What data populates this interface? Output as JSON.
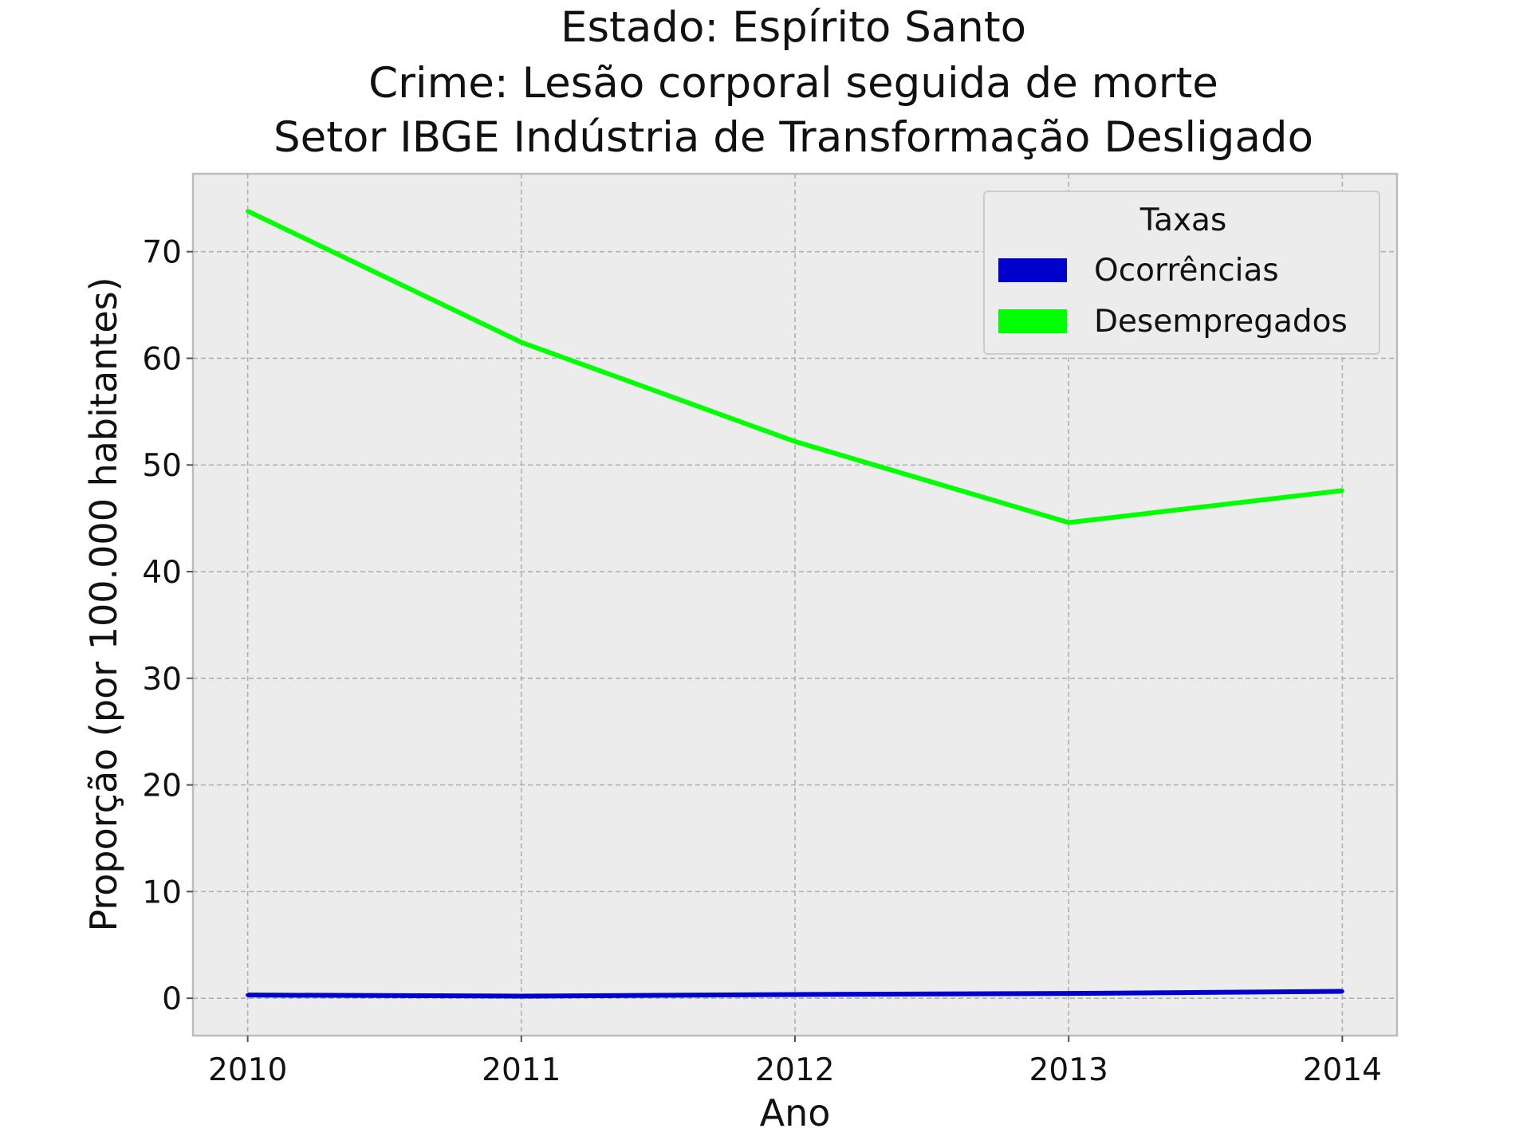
{
  "chart_data": {
    "type": "line",
    "title_lines": [
      "Estado: Espírito Santo",
      "Crime: Lesão corporal seguida de morte",
      "Setor IBGE  Indústria de Transformação   Desligado"
    ],
    "xlabel": "Ano",
    "ylabel": "Proporção (por 100.000 habitantes)",
    "x": [
      2010,
      2011,
      2012,
      2013,
      2014
    ],
    "x_tick_labels": [
      "2010",
      "2011",
      "2012",
      "2013",
      "2014"
    ],
    "y_ticks": [
      0,
      10,
      20,
      30,
      40,
      50,
      60,
      70
    ],
    "y_tick_labels": [
      "0",
      "10",
      "20",
      "30",
      "40",
      "50",
      "60",
      "70"
    ],
    "xlim": [
      2009.8,
      2014.2
    ],
    "ylim": [
      -3.5,
      77.3
    ],
    "grid": true,
    "legend": {
      "title": "Taxas",
      "position": "top-right"
    },
    "series": [
      {
        "name": "Ocorrências",
        "color": "#0000cc",
        "values": [
          0.3,
          0.2,
          0.35,
          0.45,
          0.65
        ]
      },
      {
        "name": "Desempregados",
        "color": "#00ff00",
        "values": [
          73.8,
          61.5,
          52.2,
          44.6,
          47.6
        ]
      }
    ],
    "plot_background": "#ececec"
  }
}
